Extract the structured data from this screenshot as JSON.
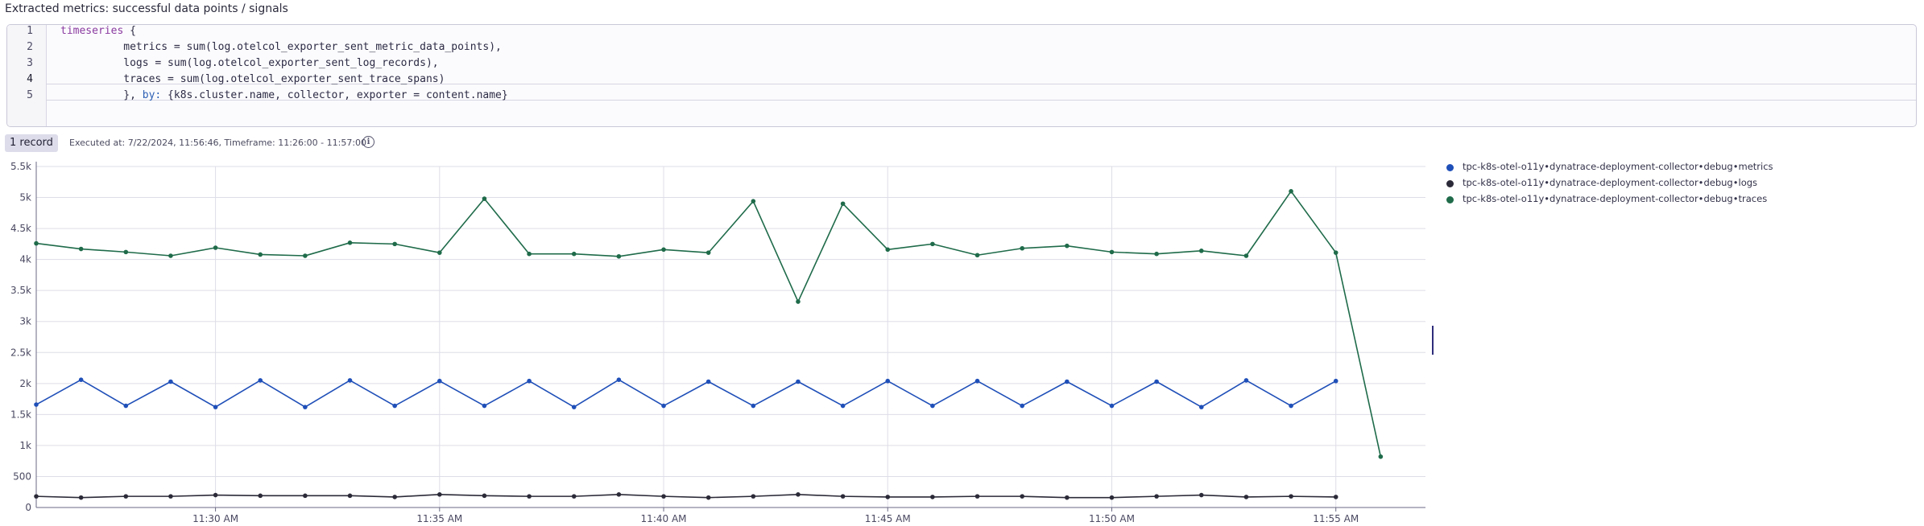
{
  "header": {
    "title": "Extracted metrics: successful data points / signals"
  },
  "editor": {
    "line_numbers": [
      "1",
      "2",
      "3",
      "4",
      "5"
    ],
    "lines": [
      {
        "keyword": "timeseries",
        "text": " {"
      },
      {
        "text": "          metrics = sum(log.otelcol_exporter_sent_metric_data_points),"
      },
      {
        "text": "          logs = sum(log.otelcol_exporter_sent_log_records),"
      },
      {
        "text": "          traces = sum(log.otelcol_exporter_sent_trace_spans)"
      },
      {
        "prefix": "          }, ",
        "keyword": "by:",
        "text": " {k8s.cluster.name, collector, exporter = content.name}"
      }
    ]
  },
  "results": {
    "record_count": "1 record",
    "executed_info": "Executed at: 7/22/2024, 11:56:46, Timeframe: 11:26:00 - 11:57:00",
    "info_icon": "info-icon"
  },
  "chart_data": {
    "type": "line",
    "x_ticks": [
      "11:30 AM",
      "11:35 AM",
      "11:40 AM",
      "11:45 AM",
      "11:50 AM",
      "11:55 AM"
    ],
    "x_range": [
      "11:26",
      "11:57"
    ],
    "x": [
      "11:26",
      "11:27",
      "11:28",
      "11:29",
      "11:30",
      "11:31",
      "11:32",
      "11:33",
      "11:34",
      "11:35",
      "11:36",
      "11:37",
      "11:38",
      "11:39",
      "11:40",
      "11:41",
      "11:42",
      "11:43",
      "11:44",
      "11:45",
      "11:46",
      "11:47",
      "11:48",
      "11:49",
      "11:50",
      "11:51",
      "11:52",
      "11:53",
      "11:54",
      "11:55",
      "11:56"
    ],
    "ylim": [
      0,
      5500
    ],
    "y_ticks": [
      "0",
      "500",
      "1k",
      "1.5k",
      "2k",
      "2.5k",
      "3k",
      "3.5k",
      "4k",
      "4.5k",
      "5k",
      "5.5k"
    ],
    "y_tick_values": [
      0,
      500,
      1000,
      1500,
      2000,
      2500,
      3000,
      3500,
      4000,
      4500,
      5000,
      5500
    ],
    "grid": true,
    "legend_position": "right",
    "series": [
      {
        "name": "tpc-k8s-otel-o11y•dynatrace-deployment-collector•debug•metrics",
        "color": "#1f4fb8",
        "values": [
          1660,
          2060,
          1640,
          2030,
          1620,
          2050,
          1620,
          2050,
          1640,
          2040,
          1640,
          2040,
          1620,
          2060,
          1640,
          2030,
          1640,
          2030,
          1640,
          2040,
          1640,
          2040,
          1640,
          2030,
          1640,
          2030,
          1620,
          2050,
          1640,
          2040,
          null
        ]
      },
      {
        "name": "tpc-k8s-otel-o11y•dynatrace-deployment-collector•debug•logs",
        "color": "#2b2a38",
        "values": [
          180,
          160,
          180,
          180,
          200,
          190,
          190,
          190,
          170,
          210,
          190,
          180,
          180,
          210,
          180,
          160,
          180,
          210,
          180,
          170,
          170,
          180,
          180,
          160,
          160,
          180,
          200,
          170,
          180,
          170,
          null
        ]
      },
      {
        "name": "tpc-k8s-otel-o11y•dynatrace-deployment-collector•debug•traces",
        "color": "#1f6b4a",
        "values": [
          4260,
          4170,
          4120,
          4060,
          4190,
          4080,
          4060,
          4270,
          4250,
          4110,
          4980,
          4090,
          4090,
          4050,
          4160,
          4110,
          4940,
          3320,
          4900,
          4160,
          4250,
          4070,
          4180,
          4220,
          4120,
          4090,
          4140,
          4060,
          5100,
          4110,
          820
        ]
      }
    ]
  }
}
